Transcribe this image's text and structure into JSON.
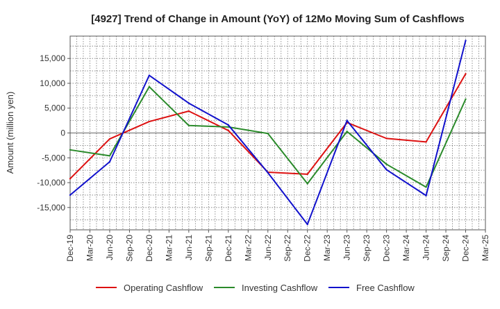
{
  "chart_data": {
    "type": "line",
    "title": "[4927]  Trend of Change in Amount (YoY) of 12Mo Moving Sum of Cashflows",
    "xlabel": "",
    "ylabel": "Amount (million yen)",
    "ylim": [
      -19500,
      19500
    ],
    "yticks": [
      15000,
      10000,
      5000,
      0,
      -5000,
      -10000,
      -15000
    ],
    "ytick_labels": [
      "15,000",
      "10,000",
      "5,000",
      "0",
      "-5,000",
      "-10,000",
      "-15,000"
    ],
    "categories": [
      "Dec-19",
      "Mar-20",
      "Jun-20",
      "Sep-20",
      "Dec-20",
      "Mar-21",
      "Jun-21",
      "Sep-21",
      "Dec-21",
      "Mar-22",
      "Jun-22",
      "Sep-22",
      "Dec-22",
      "Mar-23",
      "Jun-23",
      "Sep-23",
      "Dec-23",
      "Mar-24",
      "Jun-24",
      "Sep-24",
      "Dec-24",
      "Mar-25"
    ],
    "grid": true,
    "legend_position": "bottom",
    "series": [
      {
        "name": "Operating Cashflow",
        "color": "#dd1111",
        "values": [
          -9200,
          null,
          -1200,
          null,
          2300,
          null,
          4400,
          null,
          500,
          null,
          -7900,
          null,
          -8300,
          null,
          2100,
          null,
          -1100,
          null,
          -1800,
          null,
          11900,
          null
        ]
      },
      {
        "name": "Investing Cashflow",
        "color": "#2a8a2a",
        "values": [
          -3400,
          null,
          -4600,
          null,
          9300,
          null,
          1500,
          null,
          1200,
          null,
          -100,
          null,
          -10200,
          null,
          300,
          null,
          -6300,
          null,
          -10900,
          null,
          6800,
          null
        ]
      },
      {
        "name": "Free Cashflow",
        "color": "#1111cc",
        "values": [
          -12500,
          null,
          -5800,
          null,
          11600,
          null,
          6000,
          null,
          1600,
          null,
          -8000,
          null,
          -18400,
          null,
          2500,
          null,
          -7400,
          null,
          -12600,
          null,
          18600,
          null
        ]
      }
    ]
  }
}
